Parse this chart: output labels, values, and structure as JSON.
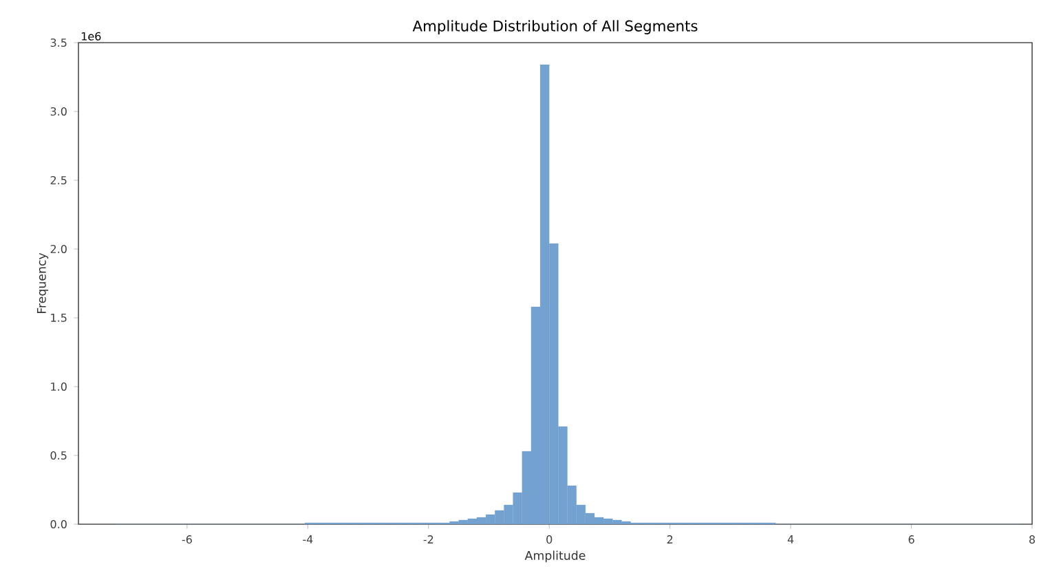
{
  "chart_data": {
    "type": "histogram",
    "title": "Amplitude Distribution of All Segments",
    "xlabel": "Amplitude",
    "ylabel": "Frequency",
    "annotations": [
      "1e6"
    ],
    "color": "#73a1d0",
    "bins": [
      -7.2,
      -7.05,
      -6.9,
      -6.75,
      -6.6,
      -6.45,
      -6.3,
      -6.15,
      -6.0,
      -5.85,
      -5.7,
      -5.55,
      -5.4,
      -5.25,
      -5.1,
      -4.95,
      -4.8,
      -4.65,
      -4.5,
      -4.35,
      -4.2,
      -4.05,
      -3.9,
      -3.75,
      -3.6,
      -3.45,
      -3.3,
      -3.15,
      -3.0,
      -2.85,
      -2.7,
      -2.55,
      -2.4,
      -2.25,
      -2.1,
      -1.95,
      -1.8,
      -1.65,
      -1.5,
      -1.35,
      -1.2,
      -1.05,
      -0.9,
      -0.75,
      -0.6,
      -0.45,
      -0.3,
      -0.15,
      0,
      0.15,
      0.3,
      0.45,
      0.6,
      0.75,
      0.9,
      1.05,
      1.2,
      1.35,
      1.5,
      1.65,
      1.8,
      1.95,
      2.1,
      2.25,
      2.4,
      2.55,
      2.7,
      2.85,
      3.0,
      3.15,
      3.3,
      3.45,
      3.6,
      3.75,
      3.9,
      4.05,
      4.2,
      4.35,
      4.5,
      4.65,
      4.8,
      4.95,
      5.1,
      5.25,
      5.4,
      5.55,
      5.7,
      5.85,
      6.0,
      6.15,
      6.3,
      6.45,
      6.6,
      6.75,
      6.9,
      7.05,
      7.2,
      7.35,
      7.5,
      7.65,
      7.8
    ],
    "values": [
      0,
      0,
      0,
      0,
      0,
      0,
      0,
      0,
      0,
      0,
      0,
      0,
      0,
      0,
      0,
      0,
      0,
      0,
      0,
      0,
      0,
      0.01,
      0.01,
      0.01,
      0.01,
      0.01,
      0.01,
      0.01,
      0.01,
      0.01,
      0.01,
      0.01,
      0.01,
      0.01,
      0.01,
      0.01,
      0.01,
      0.02,
      0.03,
      0.04,
      0.05,
      0.07,
      0.1,
      0.14,
      0.23,
      0.53,
      1.58,
      3.34,
      2.04,
      0.71,
      0.28,
      0.14,
      0.08,
      0.05,
      0.04,
      0.03,
      0.02,
      0.01,
      0.01,
      0.01,
      0.01,
      0.01,
      0.01,
      0.01,
      0.01,
      0.01,
      0.01,
      0.01,
      0.01,
      0.01,
      0.01,
      0.01,
      0.01,
      0,
      0,
      0,
      0,
      0,
      0,
      0,
      0,
      0,
      0,
      0,
      0,
      0,
      0,
      0,
      0,
      0,
      0,
      0,
      0,
      0,
      0,
      0,
      0,
      0,
      0,
      0
    ],
    "xlim": [
      -7.8,
      8.0
    ],
    "xticks": [
      -6,
      -4,
      -2,
      0,
      2,
      4,
      6,
      8
    ],
    "ylim": [
      0,
      3.5
    ],
    "yticks": [
      {
        "value": 0,
        "label": "0.0"
      },
      0.5,
      {
        "value": 1,
        "label": "1.0"
      },
      1.5,
      {
        "value": 2,
        "label": "2.0"
      },
      2.5,
      {
        "value": 3,
        "label": "3.0"
      },
      3.5
    ]
  }
}
